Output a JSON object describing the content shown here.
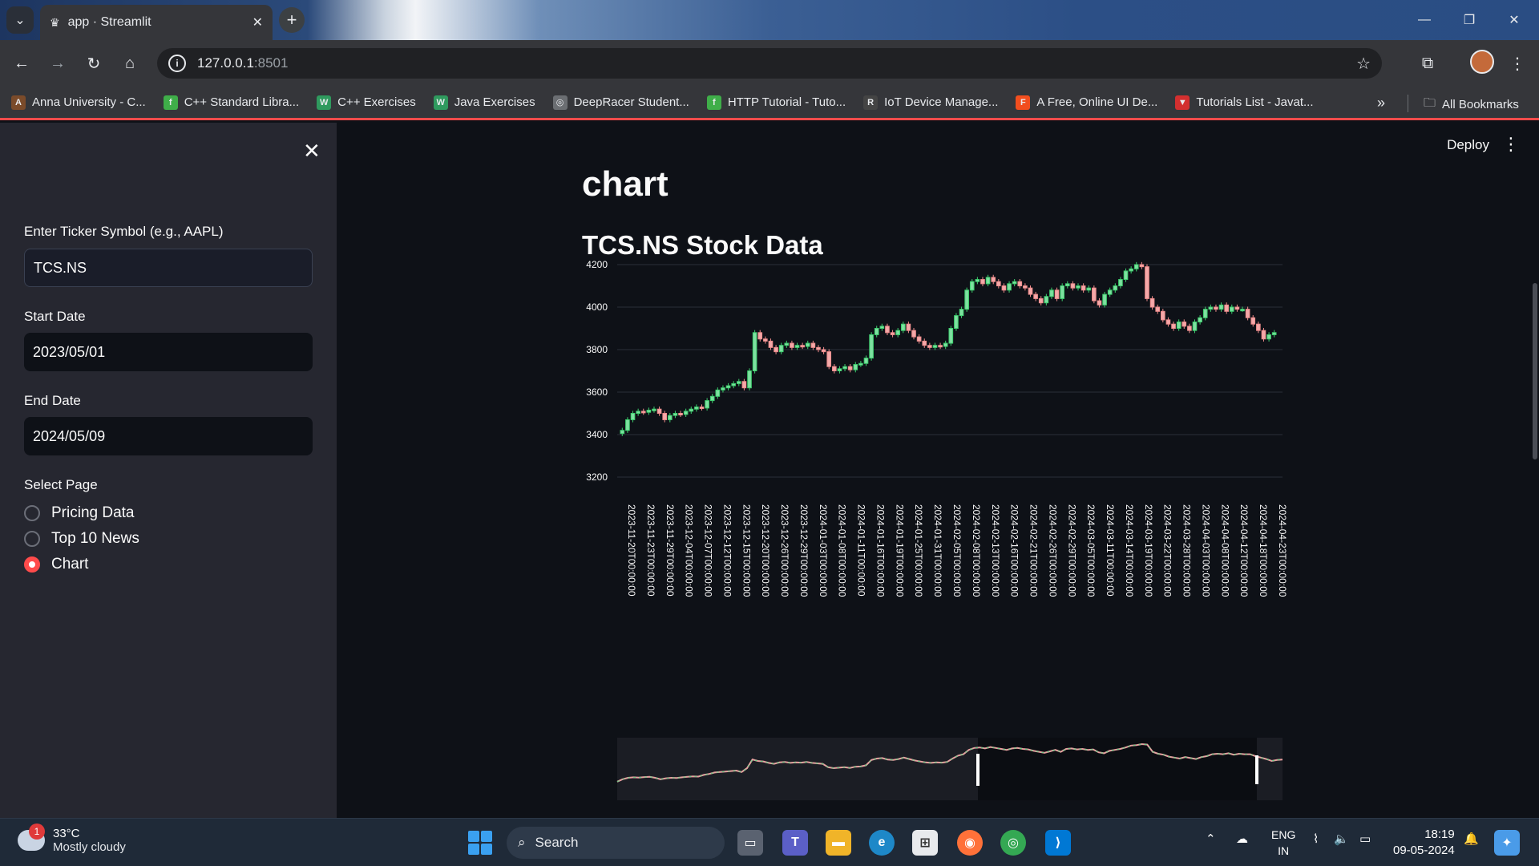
{
  "browser": {
    "tab_title": "app · Streamlit",
    "url_host": "127.0.0.1",
    "url_port": ":8501",
    "bookmarks": [
      {
        "label": "Anna University - C...",
        "icon_color": "#7b4b2a",
        "glyph": "A"
      },
      {
        "label": "C++ Standard Libra...",
        "icon_color": "#3fae49",
        "glyph": "f"
      },
      {
        "label": "C++ Exercises",
        "icon_color": "#2f9a5e",
        "glyph": "W"
      },
      {
        "label": "Java Exercises",
        "icon_color": "#2f9a5e",
        "glyph": "W"
      },
      {
        "label": "DeepRacer Student...",
        "icon_color": "#6b6e72",
        "glyph": "◎"
      },
      {
        "label": "HTTP Tutorial - Tuto...",
        "icon_color": "#3fae49",
        "glyph": "f"
      },
      {
        "label": "IoT Device Manage...",
        "icon_color": "#444",
        "glyph": "R"
      },
      {
        "label": "A Free, Online UI De...",
        "icon_color": "#f24e1e",
        "glyph": "F"
      },
      {
        "label": "Tutorials List - Javat...",
        "icon_color": "#d32f2f",
        "glyph": "▼"
      }
    ],
    "all_bookmarks": "All Bookmarks"
  },
  "sidebar": {
    "ticker_label": "Enter Ticker Symbol (e.g., AAPL)",
    "ticker_value": "TCS.NS",
    "start_label": "Start Date",
    "start_value": "2023/05/01",
    "end_label": "End Date",
    "end_value": "2024/05/09",
    "select_label": "Select Page",
    "options": [
      "Pricing Data",
      "Top 10 News",
      "Chart"
    ],
    "selected": 2
  },
  "main": {
    "deploy": "Deploy",
    "title": "chart",
    "subheader": "TCS.NS Stock Data"
  },
  "chart_data": {
    "type": "candlestick",
    "ylim": [
      3150,
      4260
    ],
    "yticks": [
      3200,
      3400,
      3600,
      3800,
      4000,
      4200
    ],
    "xticks": [
      "2023-11-20T00:00:00",
      "2023-11-23T00:00:00",
      "2023-11-29T00:00:00",
      "2023-12-04T00:00:00",
      "2023-12-07T00:00:00",
      "2023-12-12T00:00:00",
      "2023-12-15T00:00:00",
      "2023-12-20T00:00:00",
      "2023-12-26T00:00:00",
      "2023-12-29T00:00:00",
      "2024-01-03T00:00:00",
      "2024-01-08T00:00:00",
      "2024-01-11T00:00:00",
      "2024-01-16T00:00:00",
      "2024-01-19T00:00:00",
      "2024-01-25T00:00:00",
      "2024-01-31T00:00:00",
      "2024-02-05T00:00:00",
      "2024-02-08T00:00:00",
      "2024-02-13T00:00:00",
      "2024-02-16T00:00:00",
      "2024-02-21T00:00:00",
      "2024-02-26T00:00:00",
      "2024-02-29T00:00:00",
      "2024-03-05T00:00:00",
      "2024-03-11T00:00:00",
      "2024-03-14T00:00:00",
      "2024-03-19T00:00:00",
      "2024-03-22T00:00:00",
      "2024-03-28T00:00:00",
      "2024-04-03T00:00:00",
      "2024-04-08T00:00:00",
      "2024-04-12T00:00:00",
      "2024-04-18T00:00:00",
      "2024-04-23T00:00:00"
    ],
    "close": [
      3420,
      3470,
      3500,
      3510,
      3505,
      3515,
      3520,
      3500,
      3470,
      3490,
      3500,
      3495,
      3510,
      3520,
      3530,
      3525,
      3560,
      3580,
      3610,
      3620,
      3630,
      3640,
      3650,
      3620,
      3700,
      3880,
      3850,
      3840,
      3810,
      3790,
      3820,
      3830,
      3810,
      3820,
      3815,
      3830,
      3810,
      3800,
      3790,
      3720,
      3700,
      3710,
      3720,
      3705,
      3730,
      3735,
      3760,
      3870,
      3900,
      3910,
      3880,
      3870,
      3890,
      3920,
      3890,
      3860,
      3840,
      3820,
      3810,
      3820,
      3815,
      3830,
      3900,
      3960,
      3990,
      4080,
      4120,
      4130,
      4110,
      4140,
      4120,
      4100,
      4080,
      4110,
      4120,
      4100,
      4090,
      4060,
      4040,
      4020,
      4050,
      4080,
      4040,
      4100,
      4110,
      4090,
      4100,
      4080,
      4090,
      4030,
      4010,
      4060,
      4080,
      4100,
      4130,
      4170,
      4180,
      4200,
      4190,
      4040,
      4000,
      3980,
      3940,
      3920,
      3900,
      3930,
      3910,
      3890,
      3930,
      3950,
      3990,
      4000,
      3990,
      4010,
      3980,
      4000,
      3990,
      3990,
      3950,
      3920,
      3890,
      3850,
      3870,
      3880
    ]
  }
}
